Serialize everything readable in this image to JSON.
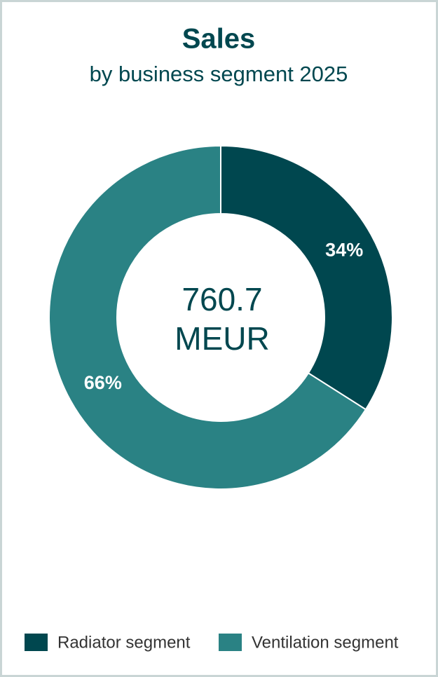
{
  "chart_data": {
    "type": "donut",
    "title": "Sales",
    "subtitle": "by business segment 2025",
    "center_label": [
      "760.7",
      "MEUR"
    ],
    "categories": [
      "Radiator segment",
      "Ventilation segment"
    ],
    "values": [
      34,
      66
    ],
    "value_labels": [
      "34%",
      "66%"
    ],
    "colors": [
      "#00474f",
      "#2a8284"
    ],
    "legend": "bottom"
  }
}
